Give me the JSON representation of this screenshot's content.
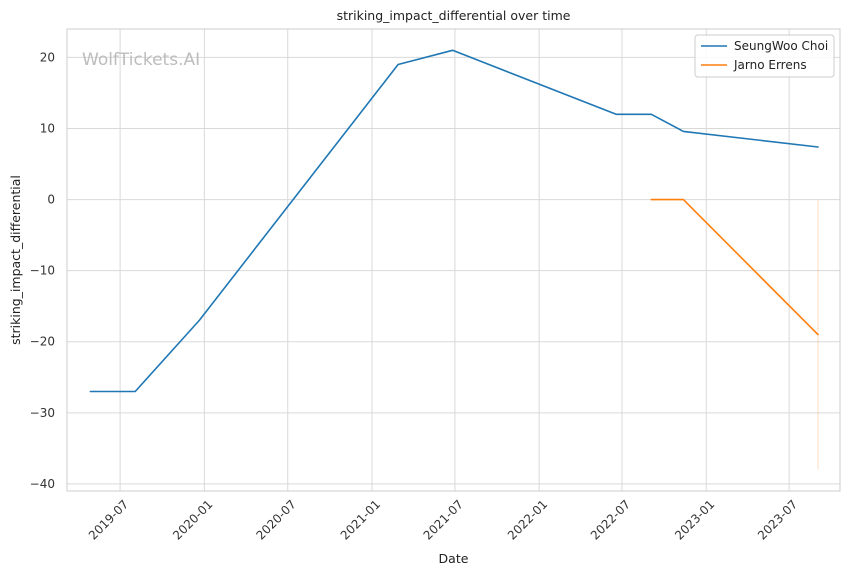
{
  "chart_data": {
    "type": "line",
    "title": "striking_impact_differential over time",
    "xlabel": "Date",
    "ylabel": "striking_impact_differential",
    "watermark": "WolfTickets.AI",
    "xlim": [
      "2019-03-07",
      "2023-10-20"
    ],
    "ylim": [
      -41,
      24
    ],
    "x_ticks": [
      "2019-07-01",
      "2020-01-01",
      "2020-07-01",
      "2021-01-01",
      "2021-07-01",
      "2022-01-01",
      "2022-07-01",
      "2023-01-01",
      "2023-07-01"
    ],
    "x_tick_labels": [
      "2019-07",
      "2020-01",
      "2020-07",
      "2021-01",
      "2021-07",
      "2022-01",
      "2022-07",
      "2023-01",
      "2023-07"
    ],
    "y_ticks": [
      20,
      10,
      0,
      -10,
      -20,
      -30,
      -40
    ],
    "y_tick_labels": [
      "20",
      "10",
      "0",
      "−10",
      "−20",
      "−30",
      "−40"
    ],
    "grid": true,
    "legend_position": "top-right",
    "series": [
      {
        "name": "SeungWoo Choi",
        "color": "#1f77b4",
        "points": [
          {
            "x": "2019-04-27",
            "y": -27
          },
          {
            "x": "2019-08-03",
            "y": -27
          },
          {
            "x": "2019-12-21",
            "y": -17
          },
          {
            "x": "2021-02-27",
            "y": 19
          },
          {
            "x": "2021-06-26",
            "y": 21
          },
          {
            "x": "2022-06-18",
            "y": 12
          },
          {
            "x": "2022-09-03",
            "y": 12
          },
          {
            "x": "2022-11-12",
            "y": 9.6
          },
          {
            "x": "2023-09-02",
            "y": 7.4
          }
        ]
      },
      {
        "name": "Jarno Errens",
        "color": "#ff7f0e",
        "points": [
          {
            "x": "2022-09-03",
            "y": 0
          },
          {
            "x": "2022-11-12",
            "y": 0
          },
          {
            "x": "2023-09-02",
            "y": -19
          }
        ]
      }
    ],
    "band": {
      "x": "2023-09-02",
      "y_range": [
        -38,
        0
      ],
      "color": "#ff7f0e"
    }
  }
}
